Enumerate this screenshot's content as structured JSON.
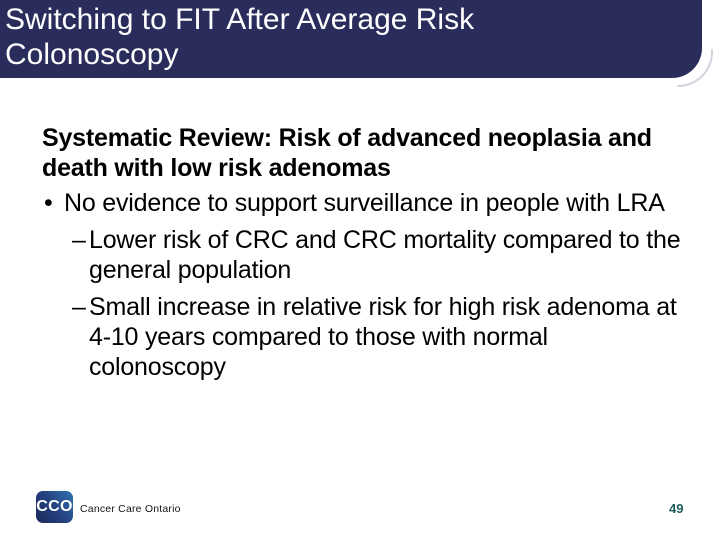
{
  "slide": {
    "type": "presentation-slide",
    "background_color": "#ffffff"
  },
  "header": {
    "title_lines": [
      "Switching to FIT After Average Risk",
      "Colonoscopy"
    ],
    "bar_color": "#2a2c5c",
    "text_color": "#ffffff"
  },
  "content": {
    "heading_lines": [
      "Systematic Review: Risk of advanced neoplasia and",
      "death with low risk adenomas"
    ],
    "bullets": [
      {
        "level": 1,
        "marker": "•",
        "lines": [
          "No evidence to support surveillance in people with LRA"
        ]
      },
      {
        "level": 2,
        "marker": "–",
        "lines": [
          "Lower risk of CRC and CRC mortality compared to the",
          "general population"
        ]
      },
      {
        "level": 2,
        "marker": "–",
        "lines": [
          "Small increase in relative risk for high risk adenoma at",
          "4-10 years compared to those with normal",
          "colonoscopy"
        ]
      }
    ]
  },
  "footer": {
    "logo_acronym": "CCO",
    "logo_caption": "Cancer Care Ontario",
    "logo_gradient": [
      "#1c2a5a",
      "#2f74b4"
    ],
    "page_number": "49",
    "page_number_color": "#1e5c5e"
  }
}
